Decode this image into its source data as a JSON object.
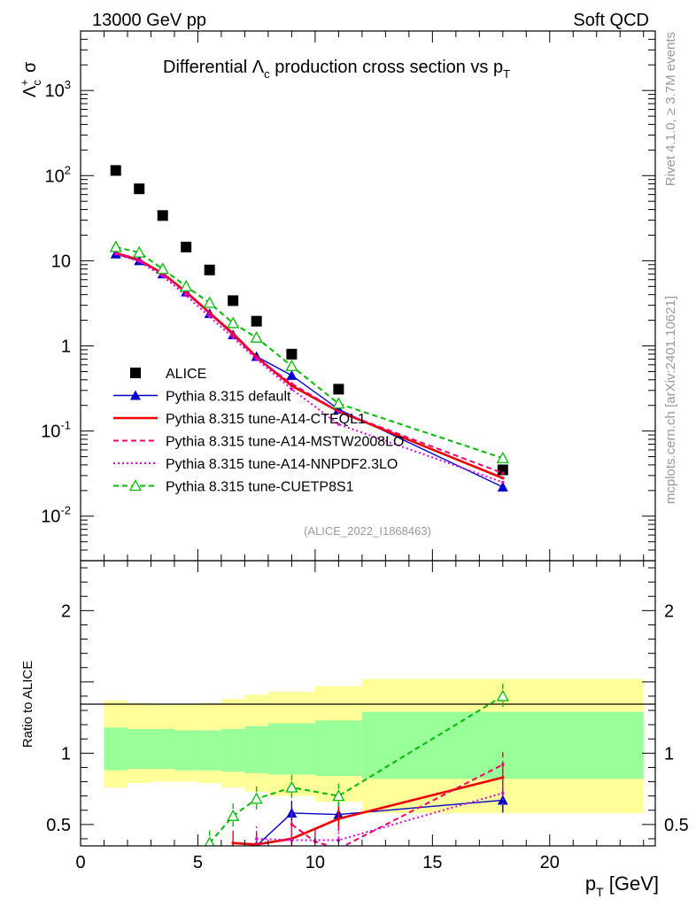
{
  "header": {
    "energy_label": "13000 GeV pp",
    "category_label": "Soft QCD"
  },
  "side": {
    "rivet_label": "Rivet 4.1.0, ≥ 3.7M events",
    "mcplots_label": "mcplots.cern.ch [arXiv:2401.10621]"
  },
  "chart_data": [
    {
      "panel": "main",
      "type": "scatter",
      "title": "Differential Λ_c production cross section vs p_T",
      "ylabel": "Λc+ σ",
      "yscale": "log",
      "ylim": [
        0.003,
        5000
      ],
      "xlim": [
        0,
        24.5
      ],
      "ytick_labels": [
        "10^-2",
        "10^-1",
        "1",
        "10",
        "10^2",
        "10^3"
      ],
      "watermark": "(ALICE_2022_I1868463)",
      "legend_position": "middle-left",
      "series": [
        {
          "name": "ALICE",
          "color": "#000000",
          "style": "marker-square",
          "x": [
            1.5,
            2.5,
            3.5,
            4.5,
            5.5,
            6.5,
            7.5,
            9.0,
            11.0,
            18.0
          ],
          "y": [
            115,
            70,
            34,
            14.5,
            7.8,
            3.4,
            1.95,
            0.8,
            0.31,
            0.035
          ]
        },
        {
          "name": "Pythia 8.315 default",
          "color": "#0000cc",
          "style": "solid-triangle",
          "x": [
            1.5,
            2.5,
            3.5,
            4.5,
            5.5,
            6.5,
            7.5,
            9.0,
            11.0,
            18.0
          ],
          "y": [
            12.0,
            10.0,
            7.0,
            4.3,
            2.4,
            1.35,
            0.75,
            0.45,
            0.18,
            0.022
          ]
        },
        {
          "name": "Pythia 8.315 tune-A14-CTEQL1",
          "color": "#ee0000",
          "style": "solid-thick",
          "x": [
            1.5,
            2.5,
            3.5,
            4.5,
            5.5,
            6.5,
            7.5,
            9.0,
            11.0,
            18.0
          ],
          "y": [
            12.3,
            10.2,
            7.1,
            4.3,
            2.45,
            1.4,
            0.74,
            0.34,
            0.17,
            0.028
          ]
        },
        {
          "name": "Pythia 8.315 tune-A14-MSTW2008LO",
          "color": "#ee0066",
          "style": "dashed",
          "x": [
            1.5,
            2.5,
            3.5,
            4.5,
            5.5,
            6.5,
            7.5,
            9.0,
            11.0,
            18.0
          ],
          "y": [
            12.5,
            10.3,
            7.0,
            4.2,
            2.4,
            1.35,
            0.72,
            0.36,
            0.17,
            0.032
          ]
        },
        {
          "name": "Pythia 8.315 tune-A14-NNPDF2.3LO",
          "color": "#dd00dd",
          "style": "dotted",
          "x": [
            1.5,
            2.5,
            3.5,
            4.5,
            5.5,
            6.5,
            7.5,
            9.0,
            11.0,
            18.0
          ],
          "y": [
            12.0,
            9.8,
            6.6,
            3.9,
            2.2,
            1.25,
            0.7,
            0.31,
            0.12,
            0.025
          ]
        },
        {
          "name": "Pythia 8.315 tune-CUETP8S1",
          "color": "#00bb00",
          "style": "dashed-open-triangle",
          "x": [
            1.5,
            2.5,
            3.5,
            4.5,
            5.5,
            6.5,
            7.5,
            9.0,
            11.0,
            18.0
          ],
          "y": [
            14.5,
            12.5,
            8.0,
            5.0,
            3.2,
            1.85,
            1.25,
            0.58,
            0.21,
            0.048
          ]
        }
      ]
    },
    {
      "panel": "ratio",
      "type": "line",
      "ylabel": "Ratio to ALICE",
      "xlabel": "p_T [GeV]",
      "ylim": [
        0.35,
        2.35
      ],
      "xlim": [
        0,
        24.5
      ],
      "xtick_labels": [
        "0",
        "5",
        "10",
        "15",
        "20"
      ],
      "ytick_labels": [
        "0.5",
        "1",
        "2"
      ],
      "bands": {
        "edges": [
          1,
          2,
          3,
          4,
          5,
          6,
          7,
          8,
          10,
          12,
          24
        ],
        "stat_lo": [
          0.88,
          0.89,
          0.89,
          0.88,
          0.88,
          0.87,
          0.86,
          0.85,
          0.84,
          0.82
        ],
        "stat_hi": [
          1.18,
          1.17,
          1.17,
          1.16,
          1.16,
          1.17,
          1.19,
          1.21,
          1.23,
          1.29
        ],
        "sys_lo": [
          0.76,
          0.79,
          0.8,
          0.8,
          0.79,
          0.76,
          0.73,
          0.7,
          0.66,
          0.58
        ],
        "sys_hi": [
          1.37,
          1.35,
          1.34,
          1.34,
          1.35,
          1.38,
          1.41,
          1.43,
          1.47,
          1.52
        ],
        "stat_color": "#99ff99",
        "sys_color": "#ffff99"
      },
      "series": [
        {
          "name": "Pythia 8.315 default",
          "color": "#0000cc",
          "x": [
            7.5,
            9.0,
            11.0,
            18.0
          ],
          "y": [
            0.35,
            0.58,
            0.57,
            0.67
          ]
        },
        {
          "name": "Pythia 8.315 tune-A14-CTEQL1",
          "color": "#ee0000",
          "x": [
            6.5,
            7.5,
            9.0,
            11.0,
            18.0
          ],
          "y": [
            0.37,
            0.36,
            0.4,
            0.54,
            0.83
          ]
        },
        {
          "name": "Pythia 8.315 tune-A14-MSTW2008LO",
          "color": "#ee0066",
          "x": [
            9.0,
            10.0,
            11.0,
            18.0
          ],
          "y": [
            0.5,
            0.38,
            0.33,
            0.92
          ]
        },
        {
          "name": "Pythia 8.315 tune-A14-NNPDF2.3LO",
          "color": "#dd00dd",
          "x": [
            7.5,
            9.0,
            11.0,
            18.0
          ],
          "y": [
            0.4,
            0.39,
            0.39,
            0.72
          ]
        },
        {
          "name": "Pythia 8.315 tune-CUETP8S1",
          "color": "#00bb00",
          "x": [
            5.5,
            6.5,
            7.5,
            9.0,
            11.0,
            18.0
          ],
          "y": [
            0.37,
            0.56,
            0.68,
            0.76,
            0.7,
            1.4
          ]
        }
      ]
    }
  ]
}
